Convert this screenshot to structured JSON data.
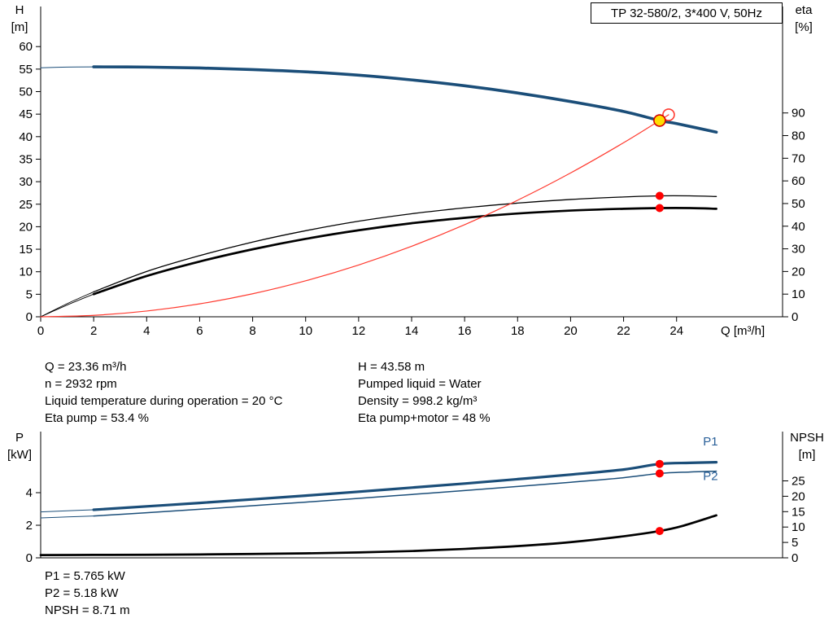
{
  "colors": {
    "curve_blue": "#1b4e79",
    "curve_red": "#ff3b30",
    "curve_black": "#000000",
    "marker_red": "#ff0000",
    "duty_yellow": "#ffdd00",
    "duty_ring": "#d40000",
    "label_blue": "#2a6099"
  },
  "operating_point": {
    "left_column": {
      "q": "Q = 23.36 m³/h",
      "n": "n = 2932 rpm",
      "temperature": "Liquid temperature during operation = 20 °C",
      "eta_pump": "Eta pump = 53.4 %"
    },
    "right_column": {
      "h": "H = 43.58 m",
      "liquid": "Pumped liquid = Water",
      "density": "Density = 998.2 kg/m³",
      "eta_pump_motor": "Eta pump+motor = 48 %"
    }
  },
  "power_values": {
    "p1": "P1 = 5.765 kW",
    "p2": "P2 = 5.18 kW",
    "npsh": "NPSH = 8.71 m"
  },
  "chart_data": [
    {
      "id": "head-efficiency-chart",
      "type": "line",
      "title": "TP 32-580/2, 3*400 V, 50Hz",
      "xlabel": "Q [m³/h]",
      "ylabel_left": "H [m]",
      "ylabel_right": "eta [%]",
      "y_left_label_lines": [
        "H",
        "[m]"
      ],
      "y_right_label_lines": [
        "eta",
        "[%]"
      ],
      "x_range": [
        0,
        28
      ],
      "x_ticks": [
        0,
        2,
        4,
        6,
        8,
        10,
        12,
        14,
        16,
        18,
        20,
        22,
        24
      ],
      "y_left_range": [
        0,
        68.9
      ],
      "y_left_ticks": [
        0,
        5,
        10,
        15,
        20,
        25,
        30,
        35,
        40,
        45,
        50,
        55,
        60
      ],
      "y_right_range": [
        0,
        137
      ],
      "y_right_ticks": [
        0,
        10,
        20,
        30,
        40,
        50,
        60,
        70,
        80,
        90
      ],
      "grid": false,
      "series": [
        {
          "name": "head-curve-leadin",
          "axis": "left",
          "color": "#1b4e79",
          "width": 1,
          "points": [
            [
              0,
              55.3
            ],
            [
              1,
              55.45
            ],
            [
              2,
              55.5
            ]
          ]
        },
        {
          "name": "head-curve",
          "axis": "left",
          "color": "#1b4e79",
          "width": 3.6,
          "points": [
            [
              2,
              55.5
            ],
            [
              4,
              55.45
            ],
            [
              6,
              55.25
            ],
            [
              8,
              54.9
            ],
            [
              10,
              54.4
            ],
            [
              12,
              53.65
            ],
            [
              14,
              52.6
            ],
            [
              16,
              51.3
            ],
            [
              18,
              49.7
            ],
            [
              20,
              47.8
            ],
            [
              22,
              45.6
            ],
            [
              23.36,
              43.58
            ],
            [
              24,
              42.9
            ],
            [
              25.5,
              41
            ]
          ]
        },
        {
          "name": "eta-pump-leadin",
          "axis": "right",
          "color": "#000000",
          "width": 0.9,
          "points": [
            [
              0,
              0
            ],
            [
              1,
              5.8
            ],
            [
              2,
              11
            ]
          ]
        },
        {
          "name": "eta-pump-curve",
          "axis": "right",
          "color": "#000000",
          "width": 1.3,
          "points": [
            [
              2,
              11
            ],
            [
              4,
              20
            ],
            [
              6,
              27
            ],
            [
              8,
              33
            ],
            [
              10,
              38
            ],
            [
              12,
              42.2
            ],
            [
              14,
              45.5
            ],
            [
              16,
              48.1
            ],
            [
              18,
              50.2
            ],
            [
              20,
              51.8
            ],
            [
              22,
              52.9
            ],
            [
              23.36,
              53.4
            ],
            [
              24.5,
              53.4
            ],
            [
              25.5,
              53.1
            ]
          ]
        },
        {
          "name": "eta-pump-motor-leadin",
          "axis": "right",
          "color": "#000000",
          "width": 0.9,
          "points": [
            [
              0,
              0
            ],
            [
              1,
              5.2
            ],
            [
              2,
              10
            ]
          ]
        },
        {
          "name": "eta-pump-motor-curve",
          "axis": "right",
          "color": "#000000",
          "width": 2.7,
          "points": [
            [
              2,
              10
            ],
            [
              4,
              18
            ],
            [
              6,
              24.4
            ],
            [
              8,
              29.8
            ],
            [
              10,
              34.4
            ],
            [
              12,
              38.2
            ],
            [
              14,
              41.3
            ],
            [
              16,
              43.7
            ],
            [
              18,
              45.6
            ],
            [
              20,
              46.9
            ],
            [
              22,
              47.7
            ],
            [
              23.36,
              48
            ],
            [
              24.5,
              48
            ],
            [
              25.5,
              47.7
            ]
          ]
        },
        {
          "name": "system-curve",
          "axis": "left",
          "color": "#ff3b30",
          "width": 1.2,
          "points": [
            [
              0,
              0
            ],
            [
              2,
              0.32
            ],
            [
              4,
              1.28
            ],
            [
              6,
              2.87
            ],
            [
              8,
              5.11
            ],
            [
              10,
              7.99
            ],
            [
              12,
              11.5
            ],
            [
              14,
              15.65
            ],
            [
              16,
              20.44
            ],
            [
              18,
              25.88
            ],
            [
              20,
              31.94
            ],
            [
              22,
              38.65
            ],
            [
              23.36,
              43.58
            ],
            [
              23.7,
              44.86
            ]
          ]
        }
      ],
      "markers": [
        {
          "name": "system-curve-end-marker",
          "axis": "left",
          "q": 23.7,
          "v": 44.86,
          "r": 7,
          "fill": "none",
          "stroke": "#ff3b30"
        },
        {
          "name": "duty-point-marker",
          "axis": "left",
          "q": 23.36,
          "v": 43.58,
          "r": 7,
          "fill": "#ffdd00",
          "stroke": "#d40000",
          "interactable": true
        },
        {
          "name": "eta-pump-point-marker",
          "axis": "right",
          "q": 23.36,
          "v": 53.4,
          "r": 5,
          "fill": "#ff0000"
        },
        {
          "name": "eta-pump-motor-point-marker",
          "axis": "right",
          "q": 23.36,
          "v": 48,
          "r": 5,
          "fill": "#ff0000"
        }
      ]
    },
    {
      "id": "power-npsh-chart",
      "type": "line",
      "xlabel": "",
      "ylabel_left": "P [kW]",
      "ylabel_right": "NPSH [m]",
      "y_left_label_lines": [
        "P",
        "[kW]"
      ],
      "y_right_label_lines": [
        "NPSH",
        "[m]"
      ],
      "x_range": [
        0,
        28
      ],
      "x_ticks": [],
      "y_left_range": [
        0,
        7.75
      ],
      "y_left_ticks": [
        0,
        2,
        4
      ],
      "y_right_range": [
        0,
        41
      ],
      "y_right_ticks": [
        0,
        5,
        10,
        15,
        20,
        25
      ],
      "grid": false,
      "series": [
        {
          "name": "p1-curve-leadin",
          "axis": "left",
          "color": "#1b4e79",
          "width": 1,
          "points": [
            [
              0,
              2.82
            ],
            [
              1,
              2.89
            ],
            [
              2,
              2.95
            ]
          ]
        },
        {
          "name": "p1-curve",
          "axis": "left",
          "color": "#1b4e79",
          "width": 3.2,
          "points": [
            [
              2,
              2.95
            ],
            [
              4,
              3.16
            ],
            [
              6,
              3.37
            ],
            [
              8,
              3.59
            ],
            [
              10,
              3.82
            ],
            [
              12,
              4.06
            ],
            [
              14,
              4.31
            ],
            [
              16,
              4.56
            ],
            [
              18,
              4.83
            ],
            [
              20,
              5.11
            ],
            [
              22,
              5.42
            ],
            [
              23.36,
              5.765
            ],
            [
              24.5,
              5.83
            ],
            [
              25.5,
              5.87
            ]
          ]
        },
        {
          "name": "p2-curve-leadin",
          "axis": "left",
          "color": "#1b4e79",
          "width": 1,
          "points": [
            [
              0,
              2.45
            ],
            [
              1,
              2.51
            ],
            [
              2,
              2.57
            ]
          ]
        },
        {
          "name": "p2-curve",
          "axis": "left",
          "color": "#1b4e79",
          "width": 1.5,
          "points": [
            [
              2,
              2.57
            ],
            [
              4,
              2.77
            ],
            [
              6,
              2.98
            ],
            [
              8,
              3.2
            ],
            [
              10,
              3.42
            ],
            [
              12,
              3.65
            ],
            [
              14,
              3.89
            ],
            [
              16,
              4.13
            ],
            [
              18,
              4.38
            ],
            [
              20,
              4.64
            ],
            [
              22,
              4.92
            ],
            [
              23.36,
              5.18
            ],
            [
              24.5,
              5.27
            ],
            [
              25.5,
              5.32
            ]
          ]
        },
        {
          "name": "npsh-curve",
          "axis": "right",
          "color": "#000000",
          "width": 2.7,
          "points": [
            [
              0,
              0.9
            ],
            [
              2,
              0.95
            ],
            [
              4,
              1
            ],
            [
              6,
              1.1
            ],
            [
              8,
              1.25
            ],
            [
              10,
              1.45
            ],
            [
              12,
              1.75
            ],
            [
              14,
              2.2
            ],
            [
              16,
              2.9
            ],
            [
              18,
              3.8
            ],
            [
              20,
              5.1
            ],
            [
              22,
              7
            ],
            [
              23.36,
              8.71
            ],
            [
              24.2,
              10.3
            ],
            [
              25.5,
              13.8
            ]
          ]
        }
      ],
      "markers": [
        {
          "name": "p1-point-marker",
          "axis": "left",
          "q": 23.36,
          "v": 5.765,
          "r": 5,
          "fill": "#ff0000"
        },
        {
          "name": "p2-point-marker",
          "axis": "left",
          "q": 23.36,
          "v": 5.18,
          "r": 5,
          "fill": "#ff0000"
        },
        {
          "name": "npsh-point-marker",
          "axis": "right",
          "q": 23.36,
          "v": 8.71,
          "r": 5,
          "fill": "#ff0000"
        }
      ],
      "annotations": [
        {
          "name": "p1-curve-label",
          "text": "P1",
          "axis": "left",
          "q": 25,
          "v": 6.9,
          "color": "#2a6099"
        },
        {
          "name": "p2-curve-label",
          "text": "P2",
          "axis": "left",
          "q": 25,
          "v": 4.78,
          "color": "#2a6099"
        }
      ]
    }
  ]
}
